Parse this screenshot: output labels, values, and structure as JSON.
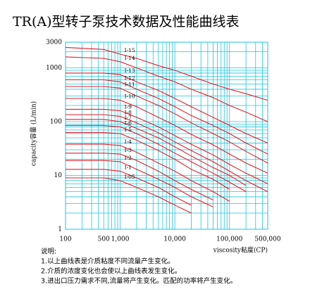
{
  "chart_data": {
    "type": "line",
    "title": "TR(A)型转子泵技术数据及性能曲线表",
    "y_label": "capacity容量 (L/min)",
    "x_label": "viscosity粘度(CP)",
    "notes_title": "说明:",
    "notes": [
      "1.以上曲线表是介质粘度不同流量产生变化。",
      "2.介质的浓度变化也会使以上曲线表发生变化。",
      "3.进出口压力需求不同,流量将产生变化。匹配的功率将产生变化。"
    ],
    "log_x": true,
    "log_y": true,
    "grid": true,
    "xlim": [
      100,
      500000
    ],
    "ylim": [
      1,
      3000
    ],
    "xticks": [
      100,
      500,
      {
        "value": 1000,
        "label": "1,000"
      },
      {
        "value": 10000,
        "label": "10,000"
      },
      {
        "value": 100000,
        "label": "100,000"
      },
      {
        "value": 500000,
        "label": "500,000"
      }
    ],
    "yticks": [
      1,
      10,
      100,
      1000,
      3000
    ],
    "xgrid": [
      200,
      300,
      400,
      600,
      700,
      800,
      900,
      2000,
      3000,
      4000,
      5000,
      6000,
      7000,
      8000,
      9000,
      20000,
      30000,
      40000,
      50000,
      60000,
      70000,
      80000,
      90000,
      200000,
      300000,
      400000
    ],
    "ygrid": [
      2,
      3,
      4,
      5,
      6,
      7,
      8,
      9,
      20,
      30,
      40,
      50,
      60,
      70,
      80,
      90,
      200,
      300,
      400,
      500,
      600,
      700,
      800,
      900,
      2000
    ],
    "x": [
      100,
      500,
      1000,
      2000,
      5000,
      10000,
      20000,
      50000,
      100000,
      200000,
      500000
    ],
    "series": [
      {
        "name": "I-15",
        "color": "#e0202a",
        "values": [
          2400,
          2200,
          1800,
          1500,
          1100,
          900,
          700,
          500,
          400,
          330,
          250
        ]
      },
      {
        "name": "I-14",
        "color": "#e0202a",
        "values": [
          1600,
          1500,
          1300,
          1000,
          700,
          550,
          400,
          280,
          200,
          150,
          100
        ]
      },
      {
        "name": "I-13",
        "color": "#e0202a",
        "values": [
          800,
          800,
          750,
          550,
          380,
          270,
          190,
          120,
          85,
          60,
          40
        ]
      },
      {
        "name": "I-12",
        "color": "#e0202a",
        "values": [
          600,
          600,
          550,
          400,
          270,
          190,
          130,
          85,
          60,
          40,
          25
        ]
      },
      {
        "name": "I-11",
        "color": "#e0202a",
        "values": [
          450,
          450,
          420,
          300,
          200,
          140,
          95,
          60,
          42,
          28,
          17
        ]
      },
      {
        "name": "I-10",
        "color": "#e0202a",
        "values": [
          270,
          270,
          250,
          190,
          120,
          85,
          58,
          37,
          25,
          17,
          11
        ]
      },
      {
        "name": "I-9",
        "color": "#e0202a",
        "values": [
          170,
          170,
          160,
          120,
          80,
          55,
          38,
          24,
          16,
          11,
          7
        ]
      },
      {
        "name": "I-8",
        "color": "#e0202a",
        "values": [
          135,
          135,
          125,
          95,
          62,
          42,
          29,
          18,
          12,
          8,
          5
        ]
      },
      {
        "name": "I-7",
        "color": "#e0202a",
        "values": [
          110,
          110,
          100,
          75,
          50,
          34,
          23,
          14,
          10,
          6.5,
          null
        ]
      },
      {
        "name": "I-6",
        "color": "#e0202a",
        "values": [
          85,
          85,
          80,
          60,
          38,
          26,
          18,
          11,
          7.5,
          5,
          null
        ]
      },
      {
        "name": "I-5",
        "color": "#e0202a",
        "values": [
          63,
          63,
          60,
          45,
          29,
          20,
          13,
          8.5,
          5.5,
          null,
          null
        ]
      },
      {
        "name": "I-4",
        "color": "#e0202a",
        "values": [
          38,
          38,
          36,
          27,
          17,
          12,
          8,
          5,
          3.3,
          null,
          null
        ]
      },
      {
        "name": "I-3",
        "color": "#e0202a",
        "values": [
          26,
          26,
          25,
          19,
          12,
          8,
          5.5,
          3.5,
          null,
          null,
          null
        ]
      },
      {
        "name": "I-2",
        "color": "#e0202a",
        "values": [
          19,
          19,
          18,
          13,
          8.5,
          6,
          4,
          2.6,
          null,
          null,
          null
        ]
      },
      {
        "name": "I-1",
        "color": "#e0202a",
        "values": [
          13,
          13,
          12,
          9,
          6,
          4,
          2.8,
          null,
          null,
          null,
          null
        ]
      },
      {
        "name": "I-05",
        "color": "#e0202a",
        "values": [
          9,
          9,
          8,
          6,
          4,
          2.8,
          2,
          null,
          null,
          null,
          null
        ]
      }
    ]
  }
}
